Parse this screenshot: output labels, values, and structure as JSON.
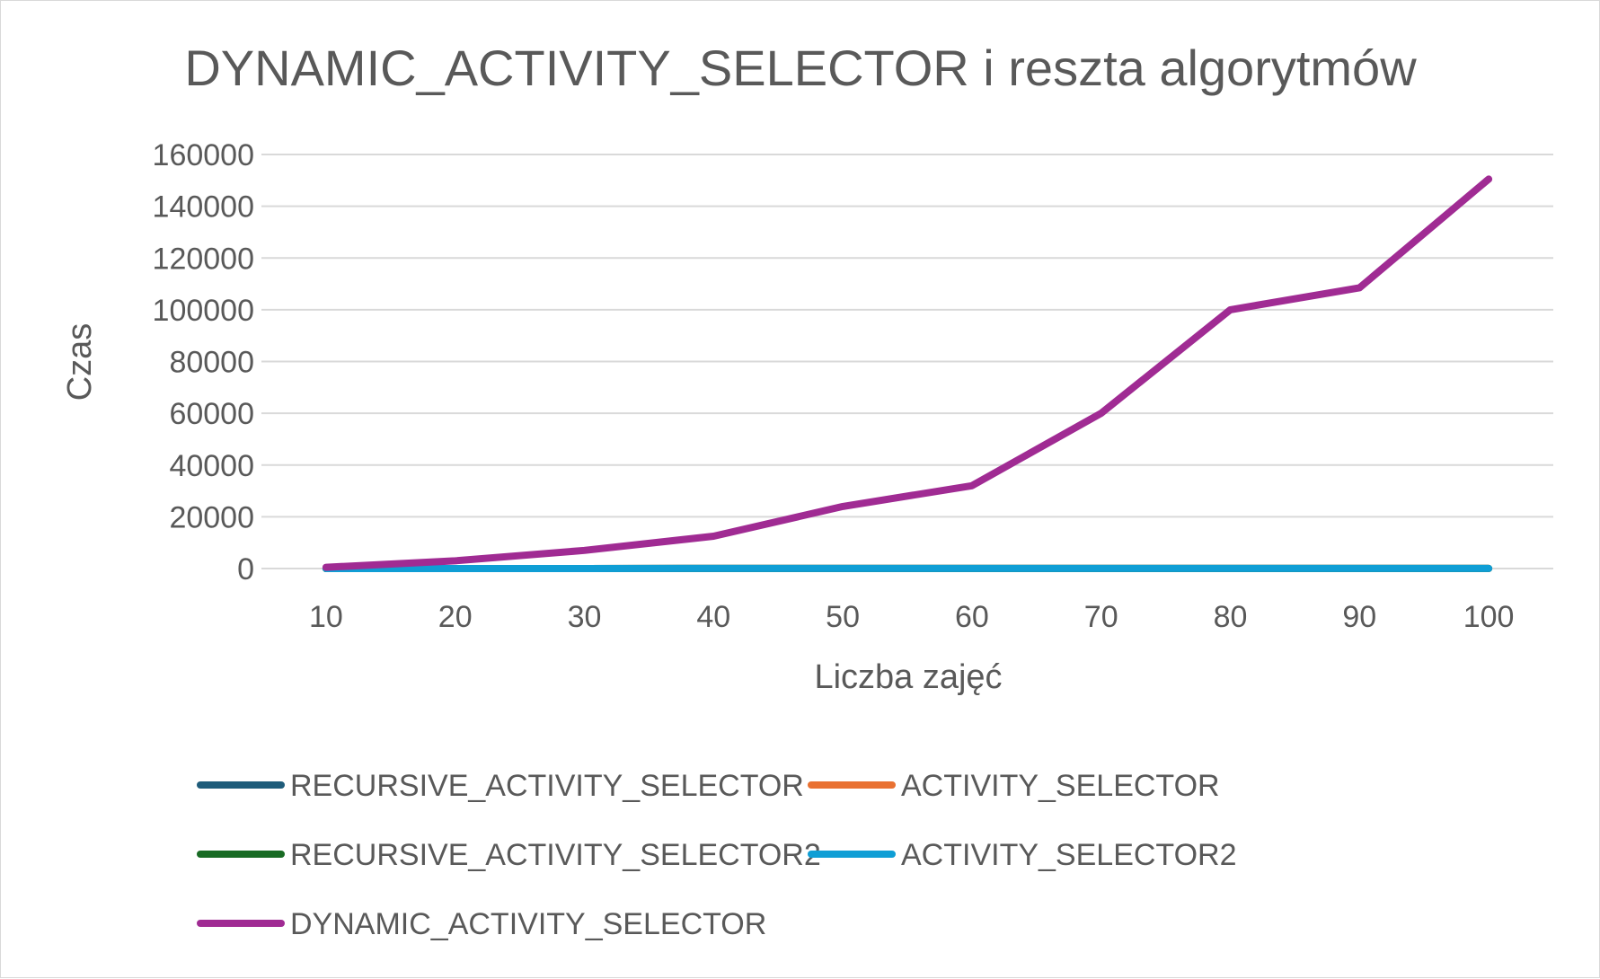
{
  "chart_data": {
    "type": "line",
    "title": "DYNAMIC_ACTIVITY_SELECTOR i reszta algorytmów",
    "xlabel": "Liczba zajęć",
    "ylabel": "Czas",
    "categories": [
      "10",
      "20",
      "30",
      "40",
      "50",
      "60",
      "70",
      "80",
      "90",
      "100"
    ],
    "ylim": [
      0,
      160000
    ],
    "yticks": [
      0,
      20000,
      40000,
      60000,
      80000,
      100000,
      120000,
      140000,
      160000
    ],
    "ytick_labels": [
      "0",
      "20000",
      "40000",
      "60000",
      "80000",
      "100000",
      "120000",
      "140000",
      "160000"
    ],
    "grid": true,
    "legend_position": "bottom",
    "series": [
      {
        "name": "RECURSIVE_ACTIVITY_SELECTOR",
        "color": "#1f5c7a",
        "values": [
          5,
          10,
          15,
          20,
          25,
          30,
          35,
          40,
          45,
          50
        ]
      },
      {
        "name": "ACTIVITY_SELECTOR",
        "color": "#e97132",
        "values": [
          5,
          10,
          15,
          20,
          25,
          30,
          35,
          40,
          45,
          50
        ]
      },
      {
        "name": "RECURSIVE_ACTIVITY_SELECTOR2",
        "color": "#196b24",
        "values": [
          5,
          10,
          15,
          20,
          25,
          30,
          35,
          40,
          45,
          50
        ]
      },
      {
        "name": "ACTIVITY_SELECTOR2",
        "color": "#0f9ed5",
        "values": [
          5,
          10,
          15,
          20,
          25,
          30,
          35,
          40,
          45,
          50
        ]
      },
      {
        "name": "DYNAMIC_ACTIVITY_SELECTOR",
        "color": "#a02b93",
        "values": [
          500,
          3000,
          7000,
          12500,
          24000,
          32000,
          60000,
          100000,
          108500,
          150500
        ]
      }
    ]
  }
}
